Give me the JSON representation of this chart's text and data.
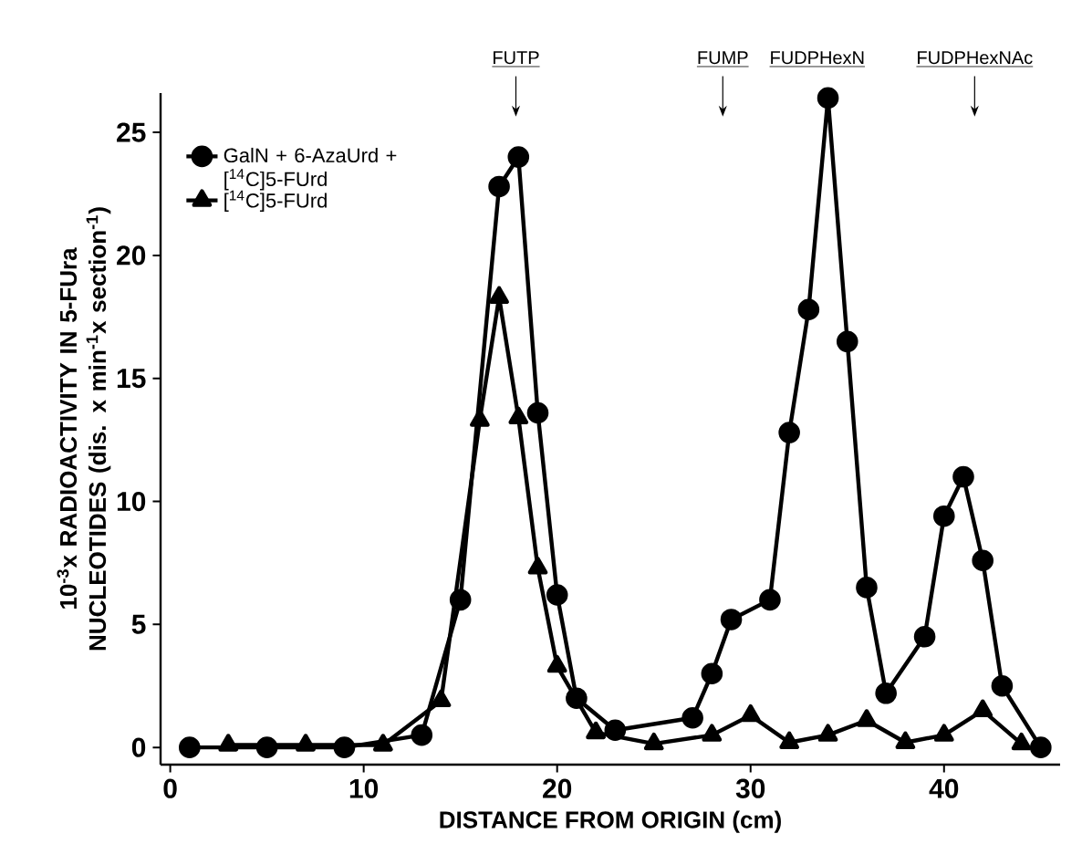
{
  "chart_data": {
    "type": "line",
    "xlabel": "DISTANCE FROM ORIGIN  (cm)",
    "ylabel": "10$^{-3}$x RADIOACTIVITY IN 5-FUra NUCLEOTIDES (dis. x min$^{-1}$x section$^{-1}$)",
    "xlim": [
      -0.5,
      46
    ],
    "ylim": [
      -0.7,
      26.6
    ],
    "xticks": [
      0,
      10,
      20,
      30,
      40
    ],
    "yticks": [
      0,
      5,
      10,
      15,
      20,
      25
    ],
    "legend": "top left",
    "line_style": "solid",
    "series": [
      {
        "name": "GalN + 6-AzaUrd + [$^{14}$C]5-FUrd",
        "color": "#000000",
        "marker": "circle",
        "x": [
          1,
          5,
          9,
          13,
          15,
          17,
          18,
          19,
          20,
          21,
          23,
          25,
          27,
          28,
          29,
          31,
          32,
          33,
          34,
          35,
          36,
          37,
          39,
          40,
          41,
          42,
          43,
          45
        ],
        "values": [
          0,
          0,
          0,
          0.5,
          6,
          22.8,
          24,
          13.6,
          6.2,
          2,
          0.7,
          null,
          1.2,
          3,
          5.2,
          6,
          12.8,
          17.8,
          26.4,
          16.5,
          6.5,
          2.2,
          4.5,
          9.4,
          11,
          7.6,
          2.5,
          0
        ]
      },
      {
        "name": "[$^{14}$C]5-FUrd",
        "color": "#000000",
        "marker": "triangle",
        "x": [
          3,
          7,
          11,
          14,
          16,
          17,
          18,
          19,
          20,
          22,
          25,
          28,
          30,
          32,
          34,
          36,
          38,
          40,
          42,
          44
        ],
        "values": [
          0.1,
          0.1,
          0.1,
          1.9,
          13.3,
          18.3,
          13.4,
          7.3,
          3.3,
          0.6,
          0.15,
          0.5,
          1.3,
          0.2,
          0.5,
          1.1,
          0.2,
          0.5,
          1.5,
          0.15
        ]
      }
    ],
    "annotations": [
      "FUTP",
      "FUMP",
      "FUDPHexN",
      "FUDPHexNAc"
    ]
  }
}
